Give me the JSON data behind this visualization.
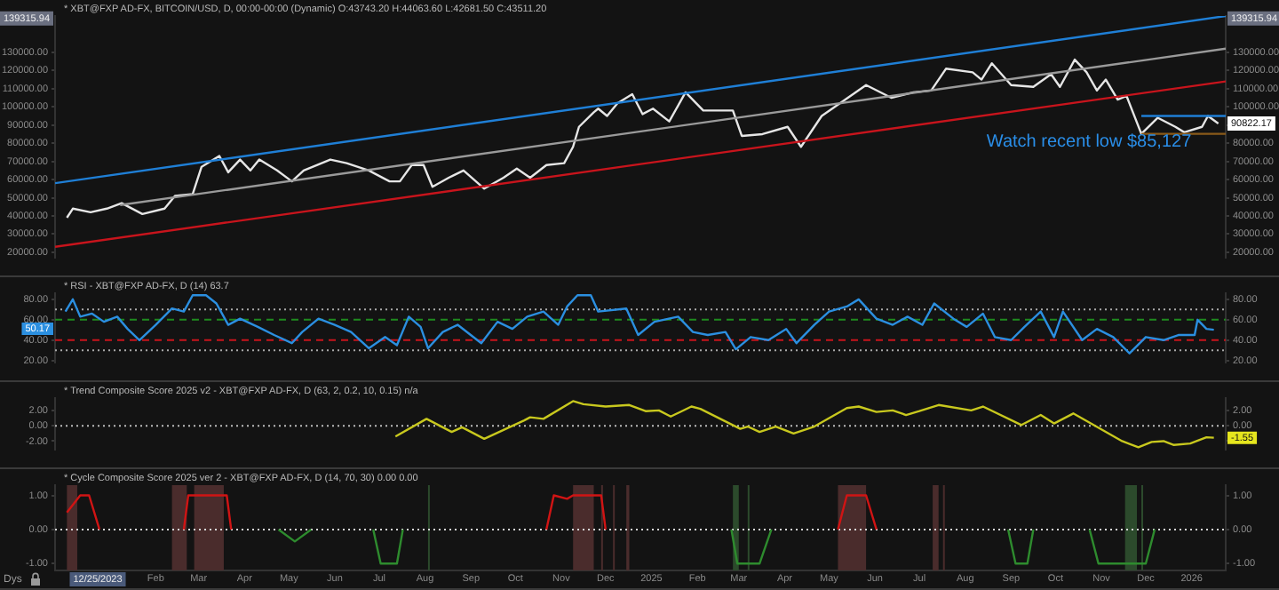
{
  "chart_data": [
    {
      "type": "line",
      "title": "* XBT@FXP AD-FX, BITCOIN/USD, D, 00:00-00:00 (Dynamic) O:43743.20 H:44063.60 L:42681.50 C:43511.20",
      "xlim": [
        "2023-11-25",
        "2026-01-24"
      ],
      "ylim": [
        17000,
        150000
      ],
      "y2lim": [
        17000,
        150000
      ],
      "yticks": [
        {
          "value": 20000,
          "label": "20000.00"
        },
        {
          "value": 30000,
          "label": "30000.00"
        },
        {
          "value": 40000,
          "label": "40000.00"
        },
        {
          "value": 50000,
          "label": "50000.00"
        },
        {
          "value": 60000,
          "label": "60000.00"
        },
        {
          "value": 70000,
          "label": "70000.00"
        },
        {
          "value": 80000,
          "label": "80000.00"
        },
        {
          "value": 90000,
          "label": "90000.00"
        },
        {
          "value": 100000,
          "label": "100000.00"
        },
        {
          "value": 110000,
          "label": "110000.00"
        },
        {
          "value": 120000,
          "label": "120000.00"
        },
        {
          "value": 130000,
          "label": "130000.00"
        }
      ],
      "y2ticks": [
        {
          "value": 20000,
          "label": "20000.00"
        },
        {
          "value": 30000,
          "label": "30000.00"
        },
        {
          "value": 40000,
          "label": "40000.00"
        },
        {
          "value": 50000,
          "label": "50000.00"
        },
        {
          "value": 60000,
          "label": "60000.00"
        },
        {
          "value": 70000,
          "label": "70000.00"
        },
        {
          "value": 80000,
          "label": "80000.00"
        },
        {
          "value": 90000,
          "label": null
        },
        {
          "value": 100000,
          "label": "100000.00"
        },
        {
          "value": 110000,
          "label": "110000.00"
        },
        {
          "value": 120000,
          "label": "120000.00"
        },
        {
          "value": 130000,
          "label": "130000.00"
        }
      ],
      "tick_labels": "y",
      "legend": false,
      "series": [
        {
          "type": "line",
          "color": "#1f7fd6",
          "x": [
            "2023-11-25",
            "2026-01-24"
          ],
          "values": [
            58000,
            150000
          ]
        },
        {
          "type": "line",
          "color": "#9a9a9a",
          "x": [
            "2024-01-08",
            "2026-01-24"
          ],
          "values": [
            46000,
            132000
          ]
        },
        {
          "type": "line",
          "color": "#c8141c",
          "x": [
            "2023-11-25",
            "2026-01-24"
          ],
          "values": [
            23000,
            114000
          ]
        },
        {
          "type": "line",
          "color": "#1f7fd6",
          "x": [
            "2025-11-28",
            "2026-01-24"
          ],
          "values": [
            95000,
            95000
          ]
        },
        {
          "type": "line",
          "color": "#8a5a1a",
          "x": [
            "2025-11-28",
            "2026-01-24"
          ],
          "values": [
            85127,
            85127
          ]
        },
        {
          "type": "line",
          "color": "#e6e6e6",
          "x": [
            "2023-12-03",
            "2023-12-07",
            "2023-12-19",
            "2023-12-30",
            "2024-01-09",
            "2024-01-23",
            "2024-02-07",
            "2024-02-14",
            "2024-02-26",
            "2024-03-03",
            "2024-03-15",
            "2024-03-21",
            "2024-03-29",
            "2024-04-05",
            "2024-04-11",
            "2024-04-23",
            "2024-05-03",
            "2024-05-11",
            "2024-05-29",
            "2024-06-09",
            "2024-06-24",
            "2024-07-08",
            "2024-07-15",
            "2024-07-23",
            "2024-07-31",
            "2024-08-06",
            "2024-08-17",
            "2024-08-27",
            "2024-09-10",
            "2024-09-23",
            "2024-10-02",
            "2024-10-11",
            "2024-10-22",
            "2024-11-03",
            "2024-11-09",
            "2024-11-13",
            "2024-11-23",
            "2024-11-26",
            "2024-12-02",
            "2024-12-09",
            "2024-12-19",
            "2024-12-26",
            "2025-01-02",
            "2025-01-13",
            "2025-01-24",
            "2025-02-05",
            "2025-02-25",
            "2025-03-03",
            "2025-03-17",
            "2025-04-03",
            "2025-04-12",
            "2025-04-26",
            "2025-05-12",
            "2025-05-26",
            "2025-06-12",
            "2025-06-27",
            "2025-07-09",
            "2025-07-19",
            "2025-08-06",
            "2025-08-12",
            "2025-08-19",
            "2025-09-01",
            "2025-09-16",
            "2025-09-28",
            "2025-10-04",
            "2025-10-14",
            "2025-10-22",
            "2025-10-29",
            "2025-11-04",
            "2025-11-12",
            "2025-11-18",
            "2025-11-28",
            "2025-12-09",
            "2025-12-21",
            "2025-12-27",
            "2026-01-08",
            "2026-01-12",
            "2026-01-19"
          ],
          "values": [
            39000,
            44000,
            42000,
            44000,
            47000,
            41000,
            44000,
            51000,
            52000,
            67000,
            73000,
            64000,
            71000,
            65000,
            71000,
            65000,
            59000,
            65000,
            71000,
            69000,
            65000,
            59000,
            59000,
            68000,
            68000,
            56000,
            61000,
            65000,
            55000,
            61000,
            66000,
            61000,
            68000,
            69000,
            78000,
            89000,
            97000,
            99000,
            95000,
            102000,
            107000,
            96000,
            99000,
            92000,
            108000,
            98000,
            98000,
            84000,
            85000,
            89000,
            78000,
            95000,
            104000,
            112000,
            105000,
            108000,
            109000,
            121000,
            119000,
            115000,
            124000,
            112000,
            111000,
            118000,
            111000,
            126000,
            119000,
            109000,
            115000,
            104000,
            106000,
            85127,
            94000,
            89000,
            86000,
            89000,
            95000,
            90822.17
          ]
        }
      ],
      "annotations": [
        "Watch recent low $85,127",
        "90822.17",
        "139315.94"
      ]
    },
    {
      "type": "line",
      "title": "* RSI - XBT@FXP AD-FX, D (14) 63.7",
      "xlim": [
        "2023-11-25",
        "2026-01-24"
      ],
      "ylim": [
        18,
        86
      ],
      "y2lim": [
        18,
        86
      ],
      "yticks": [
        {
          "value": 20,
          "label": "20.00"
        },
        {
          "value": 40,
          "label": "40.00"
        },
        {
          "value": 60,
          "label": "60.00"
        },
        {
          "value": 80,
          "label": "80.00"
        }
      ],
      "y2ticks": [
        {
          "value": 20,
          "label": "20.00"
        },
        {
          "value": 40,
          "label": "40.00"
        },
        {
          "value": 60,
          "label": "60.00"
        },
        {
          "value": 80,
          "label": "80.00"
        }
      ],
      "tick_labels": "y",
      "legend": false,
      "ref_lines": [
        {
          "axis": "y",
          "value": 70,
          "color": "#aaaaaa",
          "line_style": "dotted"
        },
        {
          "axis": "y",
          "value": 60,
          "color": "#1f8a1f",
          "line_style": "dashed"
        },
        {
          "axis": "y",
          "value": 40,
          "color": "#c8141c",
          "line_style": "dashed"
        },
        {
          "axis": "y",
          "value": 30,
          "color": "#aaaaaa",
          "line_style": "dotted"
        }
      ],
      "series": [
        {
          "type": "line",
          "color": "#2b8fe0",
          "x": [
            "2023-12-02",
            "2023-12-07",
            "2023-12-12",
            "2023-12-20",
            "2023-12-28",
            "2024-01-06",
            "2024-01-13",
            "2024-01-21",
            "2024-02-01",
            "2024-02-12",
            "2024-02-20",
            "2024-02-26",
            "2024-03-06",
            "2024-03-13",
            "2024-03-21",
            "2024-03-29",
            "2024-04-10",
            "2024-04-21",
            "2024-05-03",
            "2024-05-10",
            "2024-05-21",
            "2024-06-01",
            "2024-06-12",
            "2024-06-24",
            "2024-07-05",
            "2024-07-13",
            "2024-07-21",
            "2024-07-29",
            "2024-08-03",
            "2024-08-13",
            "2024-08-23",
            "2024-09-08",
            "2024-09-19",
            "2024-09-29",
            "2024-10-09",
            "2024-10-20",
            "2024-10-30",
            "2024-11-05",
            "2024-11-12",
            "2024-11-21",
            "2024-11-26",
            "2024-12-15",
            "2024-12-23",
            "2025-01-03",
            "2025-01-19",
            "2025-01-29",
            "2025-02-08",
            "2025-02-20",
            "2025-02-27",
            "2025-03-09",
            "2025-03-21",
            "2025-04-02",
            "2025-04-09",
            "2025-04-21",
            "2025-05-01",
            "2025-05-13",
            "2025-05-21",
            "2025-06-02",
            "2025-06-13",
            "2025-06-23",
            "2025-07-03",
            "2025-07-11",
            "2025-07-24",
            "2025-08-02",
            "2025-08-13",
            "2025-08-21",
            "2025-09-01",
            "2025-09-10",
            "2025-09-21",
            "2025-09-30",
            "2025-10-06",
            "2025-10-19",
            "2025-10-29",
            "2025-11-09",
            "2025-11-20",
            "2025-12-01",
            "2025-12-13",
            "2025-12-23",
            "2026-01-03",
            "2026-01-05",
            "2026-01-11",
            "2026-01-16"
          ],
          "values": [
            68,
            80,
            63,
            66,
            58,
            63,
            51,
            40,
            55,
            71,
            68,
            84,
            84,
            76,
            55,
            61,
            53,
            45,
            37,
            48,
            61,
            55,
            48,
            32,
            43,
            35,
            63,
            53,
            32,
            48,
            55,
            37,
            58,
            51,
            63,
            68,
            55,
            73,
            84,
            84,
            68,
            71,
            45,
            58,
            63,
            48,
            45,
            48,
            31,
            43,
            40,
            51,
            37,
            55,
            68,
            73,
            80,
            61,
            55,
            63,
            55,
            76,
            61,
            53,
            66,
            43,
            40,
            53,
            68,
            43,
            68,
            40,
            51,
            43,
            27,
            43,
            40,
            45,
            45,
            60,
            51,
            50.17
          ]
        }
      ],
      "annotations": [
        "50.17"
      ]
    },
    {
      "type": "line",
      "title": "* Trend Composite Score 2025 v2 - XBT@FXP AD-FX, D (63, 2, 0.2, 10, 0.15) n/a",
      "xlim": [
        "2023-11-25",
        "2026-01-24"
      ],
      "ylim": [
        -3.1,
        3.6
      ],
      "y2lim": [
        -3.1,
        3.6
      ],
      "yticks": [
        {
          "value": -2,
          "label": "-2.00"
        },
        {
          "value": 0,
          "label": "0.00"
        },
        {
          "value": 2,
          "label": "2.00"
        }
      ],
      "y2ticks": [
        {
          "value": -2,
          "label": null
        },
        {
          "value": 0,
          "label": "0.00"
        },
        {
          "value": 2,
          "label": "2.00"
        }
      ],
      "tick_labels": "y",
      "legend": false,
      "ref_lines": [
        {
          "axis": "y",
          "value": 0,
          "color": "#bbbbbb",
          "line_style": "dotted"
        }
      ],
      "series": [
        {
          "type": "line",
          "color": "#c8c81e",
          "x": [
            "2024-07-12",
            "2024-08-02",
            "2024-08-19",
            "2024-08-26",
            "2024-09-10",
            "2024-10-07",
            "2024-10-11",
            "2024-10-20",
            "2024-11-09",
            "2024-11-16",
            "2024-12-01",
            "2024-12-17",
            "2024-12-28",
            "2025-01-06",
            "2025-01-14",
            "2025-01-28",
            "2025-02-03",
            "2025-03-02",
            "2025-03-07",
            "2025-03-15",
            "2025-03-26",
            "2025-04-07",
            "2025-04-21",
            "2025-05-13",
            "2025-05-21",
            "2025-06-02",
            "2025-06-13",
            "2025-06-22",
            "2025-07-01",
            "2025-07-14",
            "2025-08-05",
            "2025-08-13",
            "2025-09-08",
            "2025-09-21",
            "2025-09-30",
            "2025-10-13",
            "2025-11-15",
            "2025-11-26",
            "2025-12-05",
            "2025-12-13",
            "2025-12-20",
            "2025-12-31",
            "2026-01-11",
            "2026-01-16"
          ],
          "values": [
            -1.4,
            0.9,
            -0.8,
            -0.2,
            -1.7,
            0.7,
            1.1,
            0.9,
            3.2,
            2.8,
            2.5,
            2.7,
            1.9,
            2.0,
            1.2,
            2.5,
            2.2,
            -0.4,
            -0.1,
            -0.8,
            -0.1,
            -1.0,
            -0.1,
            2.3,
            2.5,
            1.8,
            2.0,
            1.4,
            1.9,
            2.7,
            2.0,
            2.5,
            0.1,
            1.4,
            0.3,
            1.6,
            -2.0,
            -2.8,
            -2.1,
            -2.0,
            -2.5,
            -2.3,
            -1.5,
            -1.55
          ]
        }
      ],
      "annotations": [
        "-1.55"
      ]
    },
    {
      "type": "line",
      "title": "* Cycle Composite Score 2025 ver 2 - XBT@FXP AD-FX, D (14, 70, 30) 0.00 0.00",
      "xlim": [
        "2023-11-25",
        "2026-01-24"
      ],
      "ylim": [
        -1.2,
        1.3
      ],
      "y2lim": [
        -1.2,
        1.3
      ],
      "yticks": [
        {
          "value": -1,
          "label": "-1.00"
        },
        {
          "value": 0,
          "label": "0.00"
        },
        {
          "value": 1,
          "label": "1.00"
        }
      ],
      "y2ticks": [
        {
          "value": -1,
          "label": "-1.00"
        },
        {
          "value": 0,
          "label": "0.00"
        },
        {
          "value": 1,
          "label": "1.00"
        }
      ],
      "xticks": [
        {
          "value": "2024-02-01",
          "label": "Feb"
        },
        {
          "value": "2024-03-01",
          "label": "Mar"
        },
        {
          "value": "2024-04-01",
          "label": "Apr"
        },
        {
          "value": "2024-05-01",
          "label": "May"
        },
        {
          "value": "2024-06-01",
          "label": "Jun"
        },
        {
          "value": "2024-07-01",
          "label": "Jul"
        },
        {
          "value": "2024-08-01",
          "label": "Aug"
        },
        {
          "value": "2024-09-01",
          "label": "Sep"
        },
        {
          "value": "2024-10-01",
          "label": "Oct"
        },
        {
          "value": "2024-11-01",
          "label": "Nov"
        },
        {
          "value": "2024-12-01",
          "label": "Dec"
        },
        {
          "value": "2025-01-01",
          "label": "2025"
        },
        {
          "value": "2025-02-01",
          "label": "Feb"
        },
        {
          "value": "2025-03-01",
          "label": "Mar"
        },
        {
          "value": "2025-04-01",
          "label": "Apr"
        },
        {
          "value": "2025-05-01",
          "label": "May"
        },
        {
          "value": "2025-06-01",
          "label": "Jun"
        },
        {
          "value": "2025-07-01",
          "label": "Jul"
        },
        {
          "value": "2025-08-01",
          "label": "Aug"
        },
        {
          "value": "2025-09-01",
          "label": "Sep"
        },
        {
          "value": "2025-10-01",
          "label": "Oct"
        },
        {
          "value": "2025-11-01",
          "label": "Nov"
        },
        {
          "value": "2025-12-01",
          "label": "Dec"
        },
        {
          "value": "2026-01-01",
          "label": "2026"
        }
      ],
      "legend": false,
      "ref_lines": [
        {
          "axis": "y",
          "value": 0,
          "color": "#d8d8d8",
          "line_style": "dotted"
        }
      ],
      "bands": [
        {
          "axis": "x",
          "from": "2023-12-03",
          "to": "2023-12-10",
          "color": "#4a2c2c"
        },
        {
          "axis": "x",
          "from": "2024-02-12",
          "to": "2024-02-22",
          "color": "#4a2c2c"
        },
        {
          "axis": "x",
          "from": "2024-02-27",
          "to": "2024-03-18",
          "color": "#4a2c2c"
        },
        {
          "axis": "x",
          "from": "2024-11-09",
          "to": "2024-11-23",
          "color": "#4a2c2c"
        },
        {
          "axis": "x",
          "from": "2024-11-28",
          "to": "2024-11-29",
          "color": "#4a2c2c"
        },
        {
          "axis": "x",
          "from": "2024-12-06",
          "to": "2024-12-07",
          "color": "#4a2c2c"
        },
        {
          "axis": "x",
          "from": "2024-12-15",
          "to": "2024-12-17",
          "color": "#4a2c2c"
        },
        {
          "axis": "x",
          "from": "2025-05-07",
          "to": "2025-05-26",
          "color": "#4a2c2c"
        },
        {
          "axis": "x",
          "from": "2025-07-10",
          "to": "2025-07-14",
          "color": "#4a2c2c"
        },
        {
          "axis": "x",
          "from": "2025-07-17",
          "to": "2025-07-18",
          "color": "#4a2c2c"
        },
        {
          "axis": "x",
          "from": "2024-08-03",
          "to": "2024-08-04",
          "color": "#2c4a2c"
        },
        {
          "axis": "x",
          "from": "2025-02-25",
          "to": "2025-03-01",
          "color": "#2c4a2c"
        },
        {
          "axis": "x",
          "from": "2025-03-07",
          "to": "2025-03-08",
          "color": "#2c4a2c"
        },
        {
          "axis": "x",
          "from": "2025-11-17",
          "to": "2025-11-25",
          "color": "#2c4a2c"
        },
        {
          "axis": "x",
          "from": "2025-11-28",
          "to": "2025-11-29",
          "color": "#2c4a2c"
        }
      ],
      "series": [
        {
          "type": "line",
          "color": "#d01414",
          "x": [
            "2023-12-03",
            "2023-12-12",
            "2023-12-18",
            "2023-12-25",
            "2024-01-15",
            "2024-02-20",
            "2024-02-23",
            "2024-03-20",
            "2024-03-23",
            "2024-04-15",
            "2024-10-22",
            "2024-10-27",
            "2024-11-05",
            "2024-11-09",
            "2024-11-28",
            "2024-12-01",
            "2025-01-15",
            "2025-05-07",
            "2025-05-13",
            "2025-05-26",
            "2025-06-02"
          ],
          "values": [
            0.5,
            1,
            1,
            0,
            null,
            0,
            1,
            1,
            0,
            null,
            0,
            1,
            0.9,
            1,
            1,
            0,
            null,
            0,
            1,
            1,
            0
          ]
        },
        {
          "type": "line",
          "color": "#2e8b2e",
          "x": [
            "2024-04-24",
            "2024-05-05",
            "2024-05-16",
            "2024-06-05",
            "2024-06-27",
            "2024-07-02",
            "2024-07-13",
            "2024-07-17",
            "2024-08-15",
            "2025-02-24",
            "2025-02-28",
            "2025-03-15",
            "2025-03-23",
            "2025-04-30",
            "2025-08-30",
            "2025-09-04",
            "2025-09-12",
            "2025-09-16",
            "2025-10-01",
            "2025-10-24",
            "2025-10-30",
            "2025-12-01",
            "2025-12-07"
          ],
          "values": [
            0,
            -0.35,
            0,
            null,
            0,
            -1,
            -1,
            0,
            null,
            0,
            -1,
            -1,
            0,
            null,
            0,
            -1,
            -1,
            0,
            null,
            0,
            -1,
            -1,
            0
          ]
        }
      ],
      "annotations": [
        "Dys",
        "12/25/2023"
      ]
    }
  ]
}
